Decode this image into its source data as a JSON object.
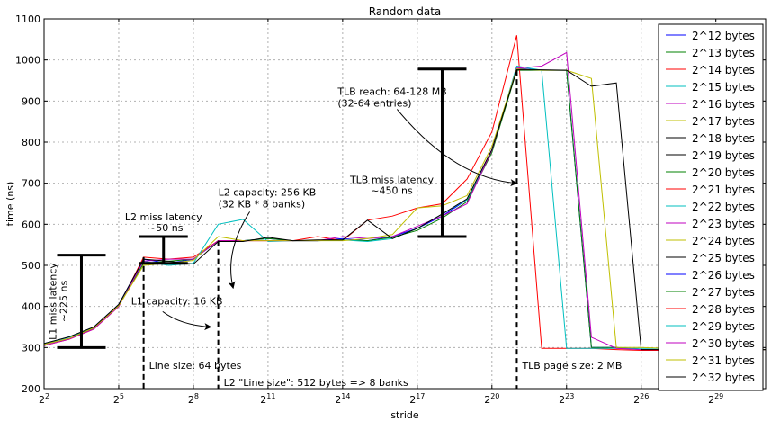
{
  "chart_data": {
    "type": "line",
    "title": "Random data",
    "xlabel": "stride",
    "ylabel": "time (ns)",
    "x_scale": "log2",
    "xlim_exp": [
      2,
      31
    ],
    "ylim": [
      200,
      1100
    ],
    "grid": true,
    "legend_position": "right",
    "x_ticks": [
      {
        "exp": 2,
        "label": "2"
      },
      {
        "exp": 5,
        "label": "5"
      },
      {
        "exp": 8,
        "label": "8"
      },
      {
        "exp": 11,
        "label": "11"
      },
      {
        "exp": 14,
        "label": "14"
      },
      {
        "exp": 17,
        "label": "17"
      },
      {
        "exp": 20,
        "label": "20"
      },
      {
        "exp": 23,
        "label": "23"
      },
      {
        "exp": 26,
        "label": "26"
      },
      {
        "exp": 29,
        "label": "29"
      }
    ],
    "x_tick_base": "2",
    "y_ticks": [
      200,
      300,
      400,
      500,
      600,
      700,
      800,
      900,
      1000,
      1100
    ],
    "series": [
      {
        "name": "2^12 bytes",
        "color": "#0000ff",
        "x": [
          2,
          3,
          4,
          5,
          6,
          7,
          8,
          9,
          10,
          11,
          12,
          13,
          14,
          15,
          16,
          17,
          18,
          19,
          20,
          21,
          22,
          23,
          24,
          25,
          26,
          27,
          28,
          29,
          30,
          31
        ],
        "y": [
          310,
          325,
          350,
          405,
          515,
          505,
          515,
          560,
          560,
          565,
          560,
          560,
          565,
          560,
          570,
          590,
          620,
          660,
          780,
          980,
          975,
          975,
          300,
          300,
          295,
          295,
          295,
          295,
          295,
          295
        ]
      },
      {
        "name": "2^13 bytes",
        "color": "#008000",
        "x": [
          2,
          3,
          4,
          5,
          6,
          7,
          8,
          9,
          10,
          11,
          12,
          13,
          14,
          15,
          16,
          17,
          18,
          19,
          20,
          21,
          22,
          23,
          24,
          25,
          26,
          27,
          28,
          29,
          30,
          31
        ],
        "y": [
          308,
          322,
          347,
          402,
          505,
          510,
          515,
          560,
          560,
          565,
          560,
          560,
          562,
          560,
          568,
          585,
          615,
          655,
          775,
          975,
          975,
          975,
          300,
          300,
          295,
          295,
          295,
          295,
          295,
          295
        ]
      },
      {
        "name": "2^14 bytes",
        "color": "#ff0000",
        "x": [
          2,
          3,
          4,
          5,
          6,
          7,
          8,
          9,
          10,
          11,
          12,
          13,
          14,
          15,
          16,
          17,
          18,
          19,
          20,
          21,
          22,
          23,
          24,
          25,
          26,
          27,
          28,
          29,
          30,
          31
        ],
        "y": [
          305,
          320,
          345,
          400,
          520,
          515,
          520,
          560,
          560,
          560,
          560,
          570,
          560,
          610,
          620,
          640,
          650,
          710,
          825,
          1060,
          298,
          298,
          298,
          295,
          293,
          293,
          295,
          295,
          295,
          295
        ]
      },
      {
        "name": "2^15 bytes",
        "color": "#00bfbf",
        "x": [
          2,
          3,
          4,
          5,
          6,
          7,
          8,
          9,
          10,
          11,
          12,
          13,
          14,
          15,
          16,
          17,
          18,
          19,
          20,
          21,
          22,
          23,
          24,
          25,
          26,
          27,
          28,
          29,
          30,
          31
        ],
        "y": [
          310,
          325,
          348,
          403,
          510,
          500,
          505,
          600,
          612,
          558,
          560,
          560,
          562,
          558,
          565,
          590,
          625,
          660,
          780,
          985,
          975,
          298,
          298,
          298,
          298,
          298,
          295,
          295,
          295,
          295
        ]
      },
      {
        "name": "2^16 bytes",
        "color": "#bf00bf",
        "x": [
          2,
          3,
          4,
          5,
          6,
          7,
          8,
          9,
          10,
          11,
          12,
          13,
          14,
          15,
          16,
          17,
          18,
          19,
          20,
          21,
          22,
          23,
          24,
          25,
          26,
          27,
          28,
          29,
          30,
          31
        ],
        "y": [
          305,
          320,
          345,
          400,
          510,
          515,
          515,
          560,
          560,
          560,
          560,
          560,
          570,
          565,
          570,
          595,
          620,
          650,
          780,
          980,
          985,
          1018,
          325,
          298,
          295,
          295,
          295,
          295,
          295,
          295
        ]
      },
      {
        "name": "2^17 bytes",
        "color": "#bfbf00",
        "x": [
          2,
          3,
          4,
          5,
          6,
          7,
          8,
          9,
          10,
          11,
          12,
          13,
          14,
          15,
          16,
          17,
          18,
          19,
          20,
          21,
          22,
          23,
          24,
          25,
          26,
          27,
          28,
          29,
          30,
          31
        ],
        "y": [
          308,
          322,
          348,
          402,
          500,
          505,
          512,
          570,
          560,
          560,
          560,
          560,
          560,
          565,
          575,
          640,
          645,
          670,
          790,
          978,
          975,
          975,
          955,
          300,
          300,
          298,
          295,
          295,
          295,
          295
        ]
      },
      {
        "name": "2^18 bytes",
        "color": "#000000",
        "x": [
          2,
          3,
          4,
          5,
          6,
          7,
          8,
          9,
          10,
          11,
          12,
          13,
          14,
          15,
          16,
          17,
          18,
          19,
          20,
          21,
          22,
          23,
          24,
          25,
          26,
          27,
          28,
          29,
          30,
          31
        ],
        "y": [
          310,
          326,
          350,
          405,
          515,
          510,
          503,
          558,
          558,
          568,
          560,
          562,
          562,
          610,
          565,
          590,
          625,
          662,
          782,
          976,
          976,
          975,
          936,
          944,
          295,
          295,
          295,
          295,
          295,
          295
        ]
      },
      {
        "name": "2^19 bytes",
        "color": "#000000"
      },
      {
        "name": "2^20 bytes",
        "color": "#008000"
      },
      {
        "name": "2^21 bytes",
        "color": "#ff0000"
      },
      {
        "name": "2^22 bytes",
        "color": "#00bfbf"
      },
      {
        "name": "2^23 bytes",
        "color": "#bf00bf"
      },
      {
        "name": "2^24 bytes",
        "color": "#bfbf00"
      },
      {
        "name": "2^25 bytes",
        "color": "#000000"
      },
      {
        "name": "2^26 bytes",
        "color": "#0000ff"
      },
      {
        "name": "2^27 bytes",
        "color": "#008000"
      },
      {
        "name": "2^28 bytes",
        "color": "#ff0000"
      },
      {
        "name": "2^29 bytes",
        "color": "#00bfbf"
      },
      {
        "name": "2^30 bytes",
        "color": "#bf00bf"
      },
      {
        "name": "2^31 bytes",
        "color": "#bfbf00"
      },
      {
        "name": "2^32 bytes",
        "color": "#000000"
      }
    ],
    "error_bars": [
      {
        "x_exp": 3.5,
        "low": 300,
        "high": 525,
        "label_lines": [
          "L1 miss latency",
          "~225 ns"
        ]
      },
      {
        "x_exp": 6.8,
        "low": 505,
        "high": 570,
        "label_lines": [
          "L2 miss latency",
          "~50 ns"
        ]
      },
      {
        "x_exp": 18.0,
        "low": 570,
        "high": 978,
        "label_lines": [
          "TLB miss latency",
          "~450 ns"
        ]
      }
    ],
    "vlines": [
      {
        "x_exp": 6,
        "label": "Line size: 64 bytes"
      },
      {
        "x_exp": 9,
        "label": "L2 \"Line size\": 512 bytes => 8 banks"
      },
      {
        "x_exp": 21,
        "label": "TLB page size: 2 MB"
      }
    ],
    "annotations": [
      {
        "lines": [
          "L1 capacity: 16 KB"
        ],
        "text_x_exp": 5.5,
        "text_y": 405,
        "arrow_to_x_exp": 8.7,
        "arrow_to_y": 350
      },
      {
        "lines": [
          "L2 capacity: 256 KB",
          "(32 KB * 8 banks)"
        ],
        "text_x_exp": 9.0,
        "text_y": 670,
        "arrow_to_x_exp": 9.6,
        "arrow_to_y": 445
      },
      {
        "lines": [
          "TLB reach: 64-128 MB",
          "(32-64 entries)"
        ],
        "text_x_exp": 13.8,
        "text_y": 915,
        "arrow_to_x_exp": 21.0,
        "arrow_to_y": 700
      }
    ]
  }
}
